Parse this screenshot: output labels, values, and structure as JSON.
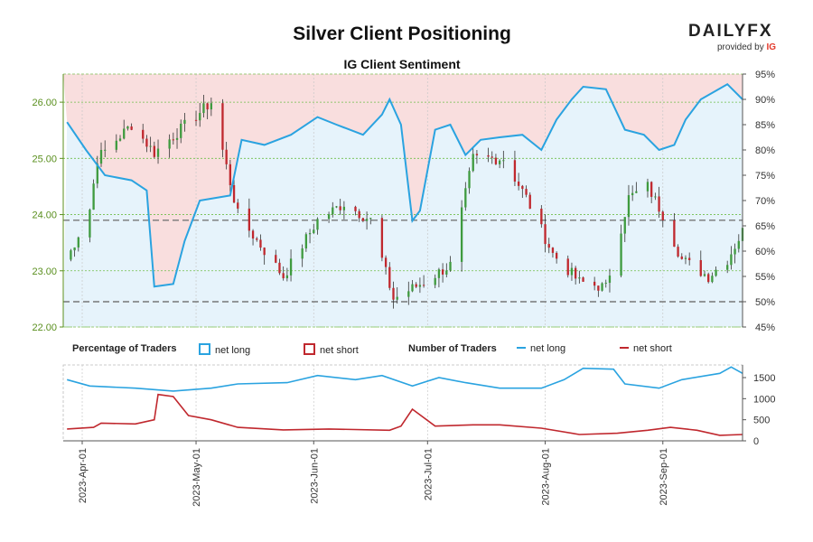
{
  "header": {
    "title": "Silver Client Positioning",
    "subtitle": "IG Client Sentiment",
    "brand": "DAILYFX",
    "brand_sub": "provided by",
    "brand_sub_mark": "IG"
  },
  "legend": {
    "pct_heading": "Percentage of Traders",
    "pct_long": "net long",
    "pct_short": "net short",
    "num_heading": "Number of Traders",
    "num_long": "net long",
    "num_short": "net short"
  },
  "colors": {
    "long": "#2aa3e0",
    "short": "#c0282e",
    "long_fill": "#e6f3fb",
    "short_fill": "#f9dede",
    "bull": "#3f9b3f",
    "bear": "#c0282e",
    "price_axis": "#5a8f1e"
  },
  "chart_data": [
    {
      "type": "candlestick",
      "title": "Silver Client Positioning",
      "subtitle": "IG Client Sentiment",
      "price_axis": {
        "ylim": [
          22.0,
          26.5
        ],
        "ticks": [
          "22.00",
          "23.00",
          "24.00",
          "25.00",
          "26.00"
        ]
      },
      "sentiment_axis": {
        "ylim": [
          45,
          95
        ],
        "ticks": [
          "45%",
          "50%",
          "55%",
          "60%",
          "65%",
          "70%",
          "75%",
          "80%",
          "85%",
          "90%",
          "95%"
        ]
      },
      "reference_levels": [
        {
          "price": 23.9
        },
        {
          "price": 22.45
        }
      ],
      "price_anchors": [
        {
          "date": "2023-03-28",
          "close": 23.2
        },
        {
          "date": "2023-04-03",
          "close": 24.1
        },
        {
          "date": "2023-04-05",
          "close": 25.0
        },
        {
          "date": "2023-04-14",
          "close": 25.6
        },
        {
          "date": "2023-04-20",
          "close": 25.1
        },
        {
          "date": "2023-05-05",
          "close": 26.0
        },
        {
          "date": "2023-05-12",
          "close": 24.0
        },
        {
          "date": "2023-05-24",
          "close": 22.9
        },
        {
          "date": "2023-06-02",
          "close": 23.9
        },
        {
          "date": "2023-06-09",
          "close": 24.2
        },
        {
          "date": "2023-06-16",
          "close": 23.9
        },
        {
          "date": "2023-06-22",
          "close": 22.5
        },
        {
          "date": "2023-06-30",
          "close": 22.8
        },
        {
          "date": "2023-07-07",
          "close": 23.1
        },
        {
          "date": "2023-07-13",
          "close": 25.0
        },
        {
          "date": "2023-07-21",
          "close": 25.0
        },
        {
          "date": "2023-07-27",
          "close": 24.3
        },
        {
          "date": "2023-08-03",
          "close": 23.3
        },
        {
          "date": "2023-08-10",
          "close": 22.8
        },
        {
          "date": "2023-08-17",
          "close": 22.7
        },
        {
          "date": "2023-08-23",
          "close": 24.3
        },
        {
          "date": "2023-08-28",
          "close": 24.5
        },
        {
          "date": "2023-09-01",
          "close": 24.0
        },
        {
          "date": "2023-09-06",
          "close": 23.2
        },
        {
          "date": "2023-09-13",
          "close": 22.9
        },
        {
          "date": "2023-09-18",
          "close": 23.2
        },
        {
          "date": "2023-09-22",
          "close": 23.7
        }
      ],
      "net_long_pct": [
        {
          "date": "2023-03-28",
          "value": 85.5
        },
        {
          "date": "2023-04-02",
          "value": 80
        },
        {
          "date": "2023-04-07",
          "value": 75
        },
        {
          "date": "2023-04-14",
          "value": 74
        },
        {
          "date": "2023-04-18",
          "value": 72
        },
        {
          "date": "2023-04-20",
          "value": 53
        },
        {
          "date": "2023-04-25",
          "value": 53.5
        },
        {
          "date": "2023-04-28",
          "value": 62
        },
        {
          "date": "2023-05-02",
          "value": 70
        },
        {
          "date": "2023-05-10",
          "value": 71
        },
        {
          "date": "2023-05-13",
          "value": 82
        },
        {
          "date": "2023-05-19",
          "value": 81
        },
        {
          "date": "2023-05-26",
          "value": 83
        },
        {
          "date": "2023-06-02",
          "value": 86.5
        },
        {
          "date": "2023-06-07",
          "value": 85
        },
        {
          "date": "2023-06-14",
          "value": 83
        },
        {
          "date": "2023-06-19",
          "value": 87
        },
        {
          "date": "2023-06-21",
          "value": 90
        },
        {
          "date": "2023-06-24",
          "value": 85
        },
        {
          "date": "2023-06-27",
          "value": 66
        },
        {
          "date": "2023-06-29",
          "value": 68
        },
        {
          "date": "2023-07-03",
          "value": 84
        },
        {
          "date": "2023-07-07",
          "value": 85
        },
        {
          "date": "2023-07-11",
          "value": 79
        },
        {
          "date": "2023-07-15",
          "value": 82
        },
        {
          "date": "2023-07-20",
          "value": 82.5
        },
        {
          "date": "2023-07-26",
          "value": 83
        },
        {
          "date": "2023-07-31",
          "value": 80
        },
        {
          "date": "2023-08-04",
          "value": 86
        },
        {
          "date": "2023-08-08",
          "value": 90
        },
        {
          "date": "2023-08-11",
          "value": 92.5
        },
        {
          "date": "2023-08-17",
          "value": 92
        },
        {
          "date": "2023-08-22",
          "value": 84
        },
        {
          "date": "2023-08-27",
          "value": 83
        },
        {
          "date": "2023-08-31",
          "value": 80
        },
        {
          "date": "2023-09-04",
          "value": 81
        },
        {
          "date": "2023-09-07",
          "value": 86
        },
        {
          "date": "2023-09-11",
          "value": 90
        },
        {
          "date": "2023-09-18",
          "value": 93
        },
        {
          "date": "2023-09-22",
          "value": 90
        }
      ],
      "traders_axis": {
        "ylim": [
          0,
          1800
        ],
        "ticks": [
          "0",
          "500",
          "1000",
          "1500"
        ]
      },
      "net_long_traders": [
        {
          "date": "2023-03-28",
          "value": 1450
        },
        {
          "date": "2023-04-03",
          "value": 1300
        },
        {
          "date": "2023-04-15",
          "value": 1250
        },
        {
          "date": "2023-04-25",
          "value": 1180
        },
        {
          "date": "2023-05-05",
          "value": 1250
        },
        {
          "date": "2023-05-12",
          "value": 1350
        },
        {
          "date": "2023-05-25",
          "value": 1380
        },
        {
          "date": "2023-06-02",
          "value": 1550
        },
        {
          "date": "2023-06-12",
          "value": 1450
        },
        {
          "date": "2023-06-19",
          "value": 1550
        },
        {
          "date": "2023-06-27",
          "value": 1300
        },
        {
          "date": "2023-07-04",
          "value": 1500
        },
        {
          "date": "2023-07-11",
          "value": 1380
        },
        {
          "date": "2023-07-20",
          "value": 1250
        },
        {
          "date": "2023-07-31",
          "value": 1250
        },
        {
          "date": "2023-08-06",
          "value": 1450
        },
        {
          "date": "2023-08-11",
          "value": 1720
        },
        {
          "date": "2023-08-19",
          "value": 1700
        },
        {
          "date": "2023-08-22",
          "value": 1350
        },
        {
          "date": "2023-08-31",
          "value": 1250
        },
        {
          "date": "2023-09-06",
          "value": 1450
        },
        {
          "date": "2023-09-16",
          "value": 1600
        },
        {
          "date": "2023-09-19",
          "value": 1750
        },
        {
          "date": "2023-09-22",
          "value": 1600
        }
      ],
      "net_short_traders": [
        {
          "date": "2023-03-28",
          "value": 280
        },
        {
          "date": "2023-04-04",
          "value": 320
        },
        {
          "date": "2023-04-06",
          "value": 420
        },
        {
          "date": "2023-04-15",
          "value": 400
        },
        {
          "date": "2023-04-20",
          "value": 500
        },
        {
          "date": "2023-04-21",
          "value": 1100
        },
        {
          "date": "2023-04-25",
          "value": 1050
        },
        {
          "date": "2023-04-29",
          "value": 600
        },
        {
          "date": "2023-05-05",
          "value": 500
        },
        {
          "date": "2023-05-12",
          "value": 320
        },
        {
          "date": "2023-05-24",
          "value": 260
        },
        {
          "date": "2023-06-05",
          "value": 280
        },
        {
          "date": "2023-06-21",
          "value": 250
        },
        {
          "date": "2023-06-24",
          "value": 350
        },
        {
          "date": "2023-06-27",
          "value": 750
        },
        {
          "date": "2023-07-03",
          "value": 350
        },
        {
          "date": "2023-07-13",
          "value": 380
        },
        {
          "date": "2023-07-20",
          "value": 380
        },
        {
          "date": "2023-07-31",
          "value": 300
        },
        {
          "date": "2023-08-10",
          "value": 150
        },
        {
          "date": "2023-08-20",
          "value": 180
        },
        {
          "date": "2023-08-28",
          "value": 250
        },
        {
          "date": "2023-09-03",
          "value": 320
        },
        {
          "date": "2023-09-10",
          "value": 250
        },
        {
          "date": "2023-09-16",
          "value": 130
        },
        {
          "date": "2023-09-22",
          "value": 150
        }
      ],
      "x_ticks": [
        "2023-Apr-01",
        "2023-May-01",
        "2023-Jun-01",
        "2023-Jul-01",
        "2023-Aug-01",
        "2023-Sep-01"
      ],
      "x_tick_dates": [
        "2023-04-01",
        "2023-05-01",
        "2023-06-01",
        "2023-07-01",
        "2023-08-01",
        "2023-09-01"
      ],
      "date_range": [
        "2023-03-27",
        "2023-09-22"
      ]
    }
  ]
}
